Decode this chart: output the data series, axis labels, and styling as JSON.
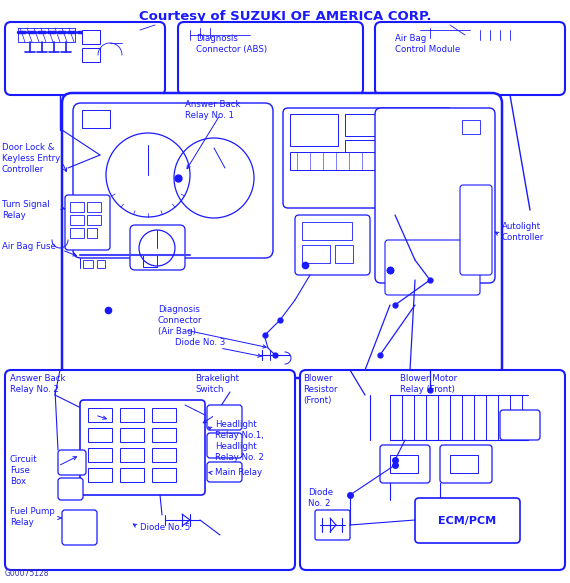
{
  "title": "Courtesy of SUZUKI OF AMERICA CORP.",
  "bg_color": "#ffffff",
  "lc": "#1a1aff",
  "tc": "#1a1aff",
  "watermark": "G00075128",
  "title_fs": 9.5,
  "label_fs": 6.2,
  "labels": {
    "diagnosis_abs": "Diagnosis\nConnector (ABS)",
    "airbag_module": "Air Bag\nControl Module",
    "answer_back1": "Answer Back\nRelay No. 1",
    "door_lock": "Door Lock &\nKeyless Entry\nController",
    "turn_signal": "Turn Signal\nRelay",
    "airbag_fuse": "Air Bag Fuse",
    "diagnosis_airbag": "Diagnosis\nConnector\n(Air Bag)",
    "diode3": "Diode No. 3",
    "autolight": "Autolight\nController",
    "answer_back2": "Answer Back\nRelay No. 2",
    "brakelight": "Brakelight\nSwitch",
    "circuit_fuse": "Circuit\nFuse\nBox",
    "headlight_relay": "Headlight\nRelay No.1,\nHeadlight\nRelay No. 2",
    "main_relay": "Main Relay",
    "fuel_pump": "Fuel Pump\nRelay",
    "diode5": "Diode No. 5",
    "blower_resistor": "Blower\nResistor\n(Front)",
    "blower_motor": "Blower Motor\nRelay (Front)",
    "diode2": "Diode\nNo. 2",
    "ecm_pcm": "ECM/PCM"
  }
}
